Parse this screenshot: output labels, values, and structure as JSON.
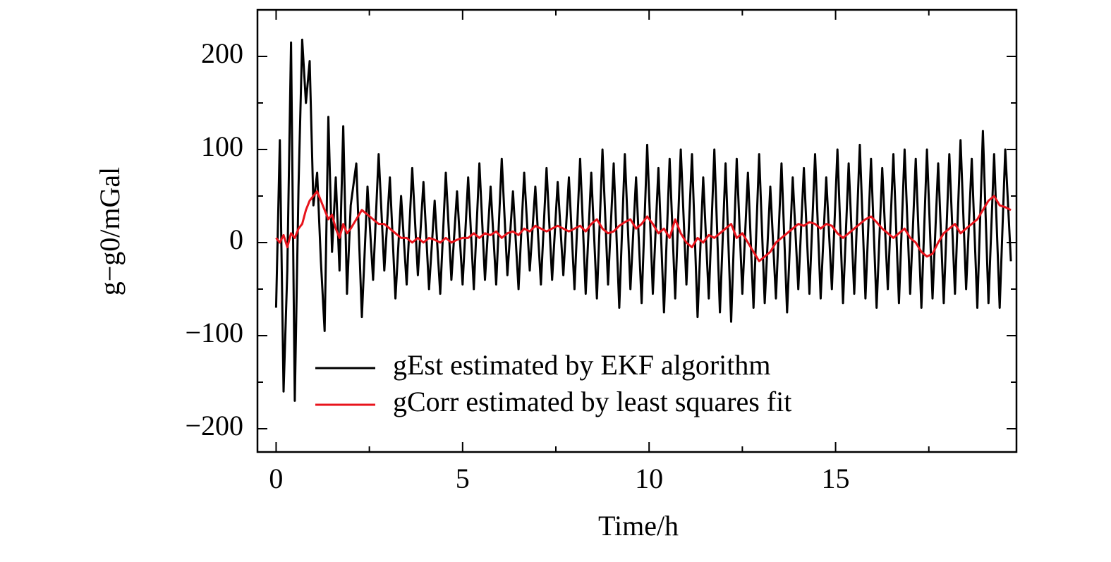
{
  "chart_data": {
    "type": "line",
    "xlabel": "Time/h",
    "ylabel": "g−g0/mGal",
    "x": [
      0,
      0.1,
      0.2,
      0.3,
      0.4,
      0.5,
      0.6,
      0.7,
      0.8,
      0.9,
      1.0,
      1.1,
      1.2,
      1.3,
      1.4,
      1.5,
      1.6,
      1.7,
      1.8,
      1.9,
      2.0,
      2.15,
      2.3,
      2.45,
      2.6,
      2.75,
      2.9,
      3.05,
      3.2,
      3.35,
      3.5,
      3.65,
      3.8,
      3.95,
      4.1,
      4.25,
      4.4,
      4.55,
      4.7,
      4.85,
      5.0,
      5.15,
      5.3,
      5.45,
      5.6,
      5.75,
      5.9,
      6.05,
      6.2,
      6.35,
      6.5,
      6.65,
      6.8,
      6.95,
      7.1,
      7.25,
      7.4,
      7.55,
      7.7,
      7.85,
      8.0,
      8.15,
      8.3,
      8.45,
      8.6,
      8.75,
      8.9,
      9.05,
      9.2,
      9.35,
      9.5,
      9.65,
      9.8,
      9.95,
      10.1,
      10.25,
      10.4,
      10.55,
      10.7,
      10.85,
      11.0,
      11.15,
      11.3,
      11.45,
      11.6,
      11.75,
      11.9,
      12.05,
      12.2,
      12.35,
      12.5,
      12.65,
      12.8,
      12.95,
      13.1,
      13.25,
      13.4,
      13.55,
      13.7,
      13.85,
      14.0,
      14.15,
      14.3,
      14.45,
      14.6,
      14.75,
      14.9,
      15.05,
      15.2,
      15.35,
      15.5,
      15.65,
      15.8,
      15.95,
      16.1,
      16.25,
      16.4,
      16.55,
      16.7,
      16.85,
      17.0,
      17.15,
      17.3,
      17.45,
      17.6,
      17.75,
      17.9,
      18.05,
      18.2,
      18.35,
      18.5,
      18.65,
      18.8,
      18.95,
      19.1,
      19.25,
      19.4,
      19.55,
      19.7
    ],
    "series": [
      {
        "name": "gEst estimated by EKF algorithm",
        "color": "#000000",
        "values": [
          -70,
          110,
          -160,
          -30,
          215,
          -170,
          60,
          218,
          150,
          195,
          40,
          75,
          -20,
          -95,
          135,
          -10,
          70,
          -30,
          125,
          -55,
          40,
          85,
          -80,
          60,
          -40,
          95,
          -30,
          70,
          -60,
          50,
          -45,
          80,
          -35,
          65,
          -50,
          45,
          -55,
          75,
          -40,
          55,
          -45,
          70,
          -50,
          85,
          -40,
          60,
          -45,
          90,
          -35,
          55,
          -50,
          75,
          -30,
          60,
          -45,
          80,
          -40,
          65,
          -35,
          70,
          -50,
          90,
          -55,
          75,
          -60,
          100,
          -45,
          85,
          -70,
          95,
          -50,
          70,
          -65,
          105,
          -55,
          80,
          -75,
          90,
          -60,
          100,
          -45,
          95,
          -80,
          70,
          -60,
          100,
          -75,
          85,
          -85,
          90,
          -55,
          75,
          -70,
          95,
          -65,
          60,
          -60,
          85,
          -75,
          70,
          -50,
          80,
          -55,
          95,
          -60,
          70,
          -50,
          100,
          -65,
          85,
          -55,
          105,
          -60,
          90,
          -70,
          80,
          -50,
          95,
          -65,
          100,
          -55,
          90,
          -70,
          100,
          -60,
          85,
          -65,
          95,
          -55,
          110,
          -50,
          90,
          -70,
          120,
          -65,
          95,
          -70,
          100,
          -20
        ]
      },
      {
        "name": "gCorr estimated by least squares fit",
        "color": "#e8141c",
        "values": [
          5,
          0,
          8,
          -5,
          10,
          5,
          15,
          20,
          35,
          45,
          50,
          55,
          45,
          35,
          25,
          30,
          15,
          5,
          20,
          10,
          15,
          25,
          35,
          30,
          25,
          20,
          20,
          15,
          10,
          5,
          5,
          0,
          5,
          0,
          5,
          3,
          0,
          5,
          0,
          3,
          5,
          5,
          10,
          5,
          10,
          8,
          12,
          5,
          10,
          12,
          8,
          15,
          12,
          18,
          15,
          12,
          15,
          18,
          15,
          12,
          15,
          18,
          12,
          20,
          25,
          15,
          10,
          12,
          18,
          22,
          25,
          15,
          20,
          28,
          20,
          10,
          15,
          5,
          25,
          10,
          0,
          -5,
          5,
          0,
          8,
          5,
          10,
          15,
          20,
          5,
          10,
          0,
          -10,
          -20,
          -15,
          -10,
          0,
          5,
          10,
          15,
          20,
          18,
          22,
          20,
          15,
          20,
          18,
          10,
          5,
          10,
          15,
          20,
          25,
          28,
          22,
          15,
          10,
          5,
          10,
          15,
          5,
          0,
          -10,
          -15,
          -12,
          0,
          10,
          15,
          20,
          10,
          15,
          20,
          25,
          35,
          45,
          50,
          40,
          38,
          35
        ]
      }
    ],
    "xlim": [
      -0.5,
      19.85
    ],
    "ylim": [
      -225,
      250
    ],
    "xticks": [
      0,
      5,
      10,
      15
    ],
    "yticks": [
      {
        "value": -200,
        "label": "−200"
      },
      {
        "value": -100,
        "label": "−100"
      },
      0,
      100,
      200
    ],
    "xminorticks": [
      2.5,
      7.5,
      12.5,
      17.5
    ],
    "yminorticks": [
      -150,
      -50,
      50,
      150
    ],
    "legend": "lower right"
  }
}
